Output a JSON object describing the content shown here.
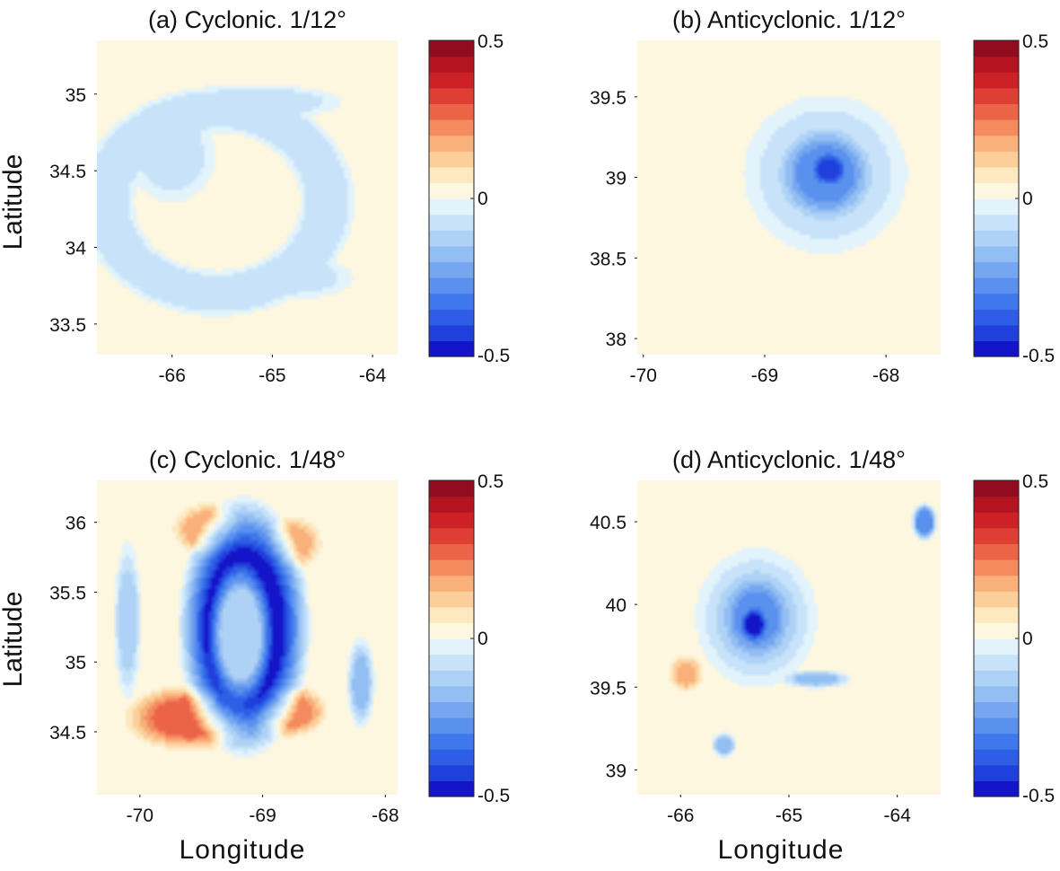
{
  "figure": {
    "xlabel": "Longitude",
    "ylabel": "Latitude"
  },
  "colormap": {
    "levels": [
      "#1414c8",
      "#2040dc",
      "#2e5ee6",
      "#3f78ec",
      "#5a90ee",
      "#76a6f0",
      "#92bef3",
      "#aed2f6",
      "#c8e3f9",
      "#e2f3fc",
      "#fdf7e0",
      "#fde8c0",
      "#fccf9a",
      "#f9b07a",
      "#f48a5e",
      "#ec6448",
      "#df3e34",
      "#cc2226",
      "#b31420",
      "#900c1e"
    ]
  },
  "chart_data": [
    {
      "type": "heatmap",
      "title": "(a) Cyclonic. 1/12°",
      "xticks": [
        -66,
        -65,
        -64
      ],
      "yticks": [
        33.5,
        34,
        34.5,
        35
      ],
      "xlim": [
        -66.75,
        -63.75
      ],
      "ylim": [
        33.3,
        35.35
      ],
      "colorbar": {
        "min": -0.5,
        "max": 0.5,
        "ticks": [
          "0.5",
          "0",
          "-0.5"
        ]
      },
      "background": 0.03,
      "features": [
        {
          "kind": "ring",
          "cx": -65.55,
          "cy": 34.3,
          "rx": 1.1,
          "ry": 0.6,
          "width": 0.28,
          "value": -0.1
        },
        {
          "kind": "blob",
          "cx": -66.0,
          "cy": 34.6,
          "rx": 0.5,
          "ry": 0.35,
          "value": -0.07
        },
        {
          "kind": "blob",
          "cx": -65.0,
          "cy": 34.95,
          "rx": 0.8,
          "ry": 0.12,
          "value": -0.07
        },
        {
          "kind": "blob",
          "cx": -64.7,
          "cy": 33.8,
          "rx": 0.6,
          "ry": 0.15,
          "value": -0.06
        }
      ]
    },
    {
      "type": "heatmap",
      "title": "(b) Anticyclonic. 1/12°",
      "xticks": [
        -70,
        -69,
        -68
      ],
      "yticks": [
        38,
        38.5,
        39,
        39.5
      ],
      "xlim": [
        -70.05,
        -67.55
      ],
      "ylim": [
        37.9,
        39.85
      ],
      "colorbar": {
        "min": -0.5,
        "max": 0.5,
        "ticks": [
          "0.5",
          "0",
          "-0.5"
        ]
      },
      "background": 0.03,
      "features": [
        {
          "kind": "blob",
          "cx": -68.5,
          "cy": 39.02,
          "rx": 0.75,
          "ry": 0.55,
          "value": -0.1
        },
        {
          "kind": "blob",
          "cx": -68.5,
          "cy": 39.02,
          "rx": 0.38,
          "ry": 0.28,
          "value": -0.28
        },
        {
          "kind": "blob",
          "cx": -68.47,
          "cy": 39.05,
          "rx": 0.14,
          "ry": 0.1,
          "value": -0.42
        }
      ]
    },
    {
      "type": "heatmap",
      "title": "(c) Cyclonic. 1/48°",
      "xticks": [
        -70,
        -69,
        -68
      ],
      "yticks": [
        34.5,
        35,
        35.5,
        36
      ],
      "xlim": [
        -70.35,
        -67.9
      ],
      "ylim": [
        34.05,
        36.3
      ],
      "colorbar": {
        "min": -0.5,
        "max": 0.5,
        "ticks": [
          "0.5",
          "0",
          "-0.5"
        ]
      },
      "background": 0.02,
      "features": [
        {
          "kind": "blob",
          "cx": -69.6,
          "cy": 34.6,
          "rx": 0.55,
          "ry": 0.25,
          "value": 0.25
        },
        {
          "kind": "blob",
          "cx": -68.8,
          "cy": 34.65,
          "rx": 0.35,
          "ry": 0.2,
          "value": 0.22
        },
        {
          "kind": "blob",
          "cx": -69.45,
          "cy": 35.95,
          "rx": 0.3,
          "ry": 0.2,
          "value": 0.18
        },
        {
          "kind": "blob",
          "cx": -68.75,
          "cy": 35.85,
          "rx": 0.25,
          "ry": 0.2,
          "value": 0.16
        },
        {
          "kind": "blob",
          "cx": -69.15,
          "cy": 35.25,
          "rx": 0.55,
          "ry": 0.95,
          "value": -0.5
        },
        {
          "kind": "blob",
          "cx": -69.18,
          "cy": 35.2,
          "rx": 0.28,
          "ry": 0.55,
          "value": -0.12
        },
        {
          "kind": "blob",
          "cx": -70.1,
          "cy": 35.3,
          "rx": 0.12,
          "ry": 0.6,
          "value": -0.12
        },
        {
          "kind": "blob",
          "cx": -68.2,
          "cy": 34.85,
          "rx": 0.12,
          "ry": 0.35,
          "value": -0.15
        }
      ]
    },
    {
      "type": "heatmap",
      "title": "(d) Anticyclonic. 1/48°",
      "xticks": [
        -66,
        -65,
        -64
      ],
      "yticks": [
        39,
        39.5,
        40,
        40.5
      ],
      "xlim": [
        -66.4,
        -63.6
      ],
      "ylim": [
        38.85,
        40.75
      ],
      "colorbar": {
        "min": -0.5,
        "max": 0.5,
        "ticks": [
          "0.5",
          "0",
          "-0.5"
        ]
      },
      "background": 0.02,
      "features": [
        {
          "kind": "blob",
          "cx": -65.3,
          "cy": 39.92,
          "rx": 0.6,
          "ry": 0.45,
          "value": -0.12
        },
        {
          "kind": "blob",
          "cx": -65.3,
          "cy": 39.92,
          "rx": 0.32,
          "ry": 0.25,
          "value": -0.28
        },
        {
          "kind": "blob",
          "cx": -65.32,
          "cy": 39.88,
          "rx": 0.12,
          "ry": 0.1,
          "value": -0.48
        },
        {
          "kind": "blob",
          "cx": -65.95,
          "cy": 39.58,
          "rx": 0.18,
          "ry": 0.12,
          "value": 0.15
        },
        {
          "kind": "blob",
          "cx": -64.75,
          "cy": 39.55,
          "rx": 0.35,
          "ry": 0.06,
          "value": -0.15
        },
        {
          "kind": "blob",
          "cx": -63.75,
          "cy": 40.5,
          "rx": 0.12,
          "ry": 0.12,
          "value": -0.3
        },
        {
          "kind": "blob",
          "cx": -65.6,
          "cy": 39.15,
          "rx": 0.12,
          "ry": 0.08,
          "value": -0.18
        }
      ]
    }
  ]
}
